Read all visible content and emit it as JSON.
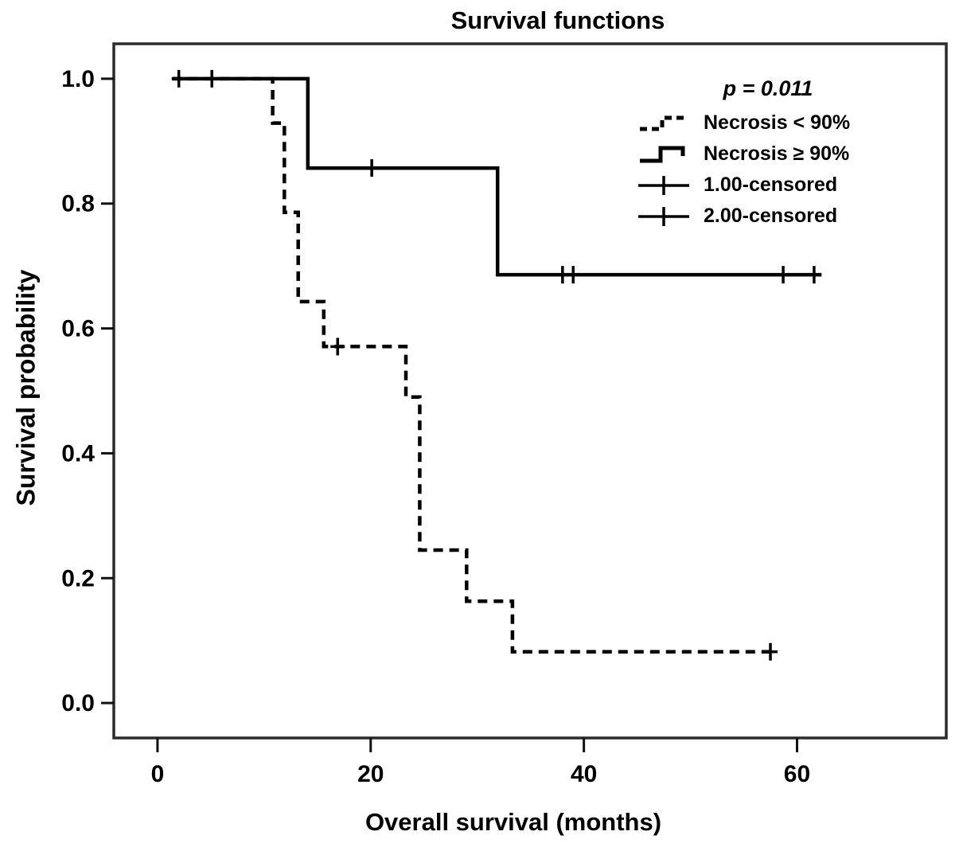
{
  "chart_data": {
    "type": "line",
    "subtype": "kaplan_meier_step",
    "title": "Survival functions",
    "xlabel": "Overall survival (months)",
    "ylabel": "Survival probability",
    "xlim": [
      -4.1,
      74.0
    ],
    "ylim": [
      -0.056,
      1.056
    ],
    "xticks": [
      0,
      20,
      40,
      60
    ],
    "yticks": [
      "0.0",
      "0.2",
      "0.4",
      "0.6",
      "0.8",
      "1.0"
    ],
    "grid": false,
    "legend_position": "upper-right-inside",
    "p_value_label": "p = 0.011",
    "colors": {
      "line": "#000000",
      "background": "#ffffff",
      "plot_border": "#2b2b2b",
      "text": "#000000"
    },
    "series": [
      {
        "name": "Necrosis < 90%",
        "group_code": "1.00",
        "style": "dashed",
        "points": [
          [
            1.4,
            1.0
          ],
          [
            10.8,
            1.0
          ],
          [
            10.8,
            0.929
          ],
          [
            11.9,
            0.929
          ],
          [
            11.9,
            0.786
          ],
          [
            13.2,
            0.786
          ],
          [
            13.2,
            0.643
          ],
          [
            15.6,
            0.643
          ],
          [
            15.6,
            0.571
          ],
          [
            23.3,
            0.571
          ],
          [
            23.3,
            0.49
          ],
          [
            24.6,
            0.49
          ],
          [
            24.6,
            0.245
          ],
          [
            29.0,
            0.245
          ],
          [
            29.0,
            0.163
          ],
          [
            33.3,
            0.163
          ],
          [
            33.3,
            0.082
          ],
          [
            57.5,
            0.082
          ]
        ],
        "censored": [
          [
            5.1,
            1.0
          ],
          [
            16.9,
            0.571
          ],
          [
            57.5,
            0.082
          ]
        ]
      },
      {
        "name": "Necrosis ≥ 90%",
        "group_code": "2.00",
        "style": "solid",
        "points": [
          [
            1.4,
            1.0
          ],
          [
            14.1,
            1.0
          ],
          [
            14.1,
            0.857
          ],
          [
            31.9,
            0.857
          ],
          [
            31.9,
            0.686
          ],
          [
            62.3,
            0.686
          ]
        ],
        "censored": [
          [
            2.0,
            1.0
          ],
          [
            20.1,
            0.857
          ],
          [
            38.0,
            0.686
          ],
          [
            39.0,
            0.686
          ],
          [
            58.7,
            0.686
          ],
          [
            61.6,
            0.686
          ]
        ]
      }
    ],
    "legend_entries": [
      {
        "label": "Necrosis < 90%",
        "marker": "dashed-step"
      },
      {
        "label": "Necrosis ≥ 90%",
        "marker": "solid-step"
      },
      {
        "label": "1.00-censored",
        "marker": "plus"
      },
      {
        "label": "2.00-censored",
        "marker": "plus"
      }
    ]
  }
}
